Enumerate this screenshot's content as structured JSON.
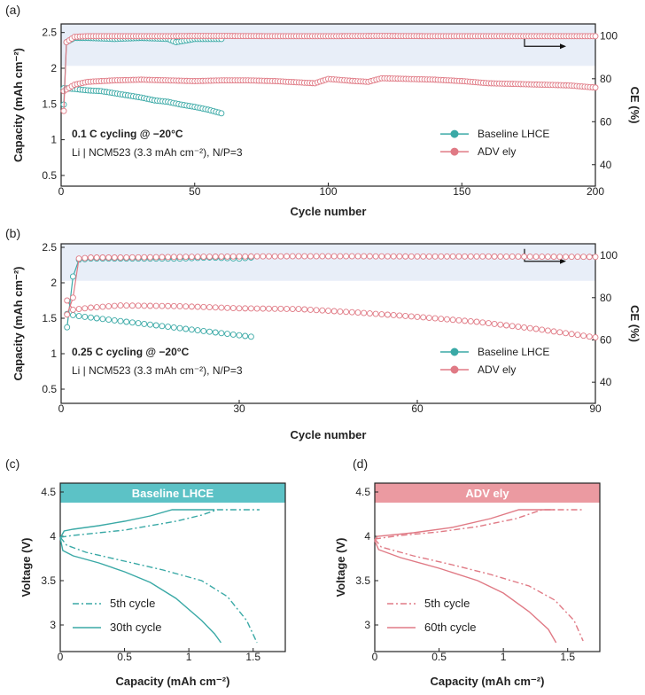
{
  "colors": {
    "baseline": "#3aa9a6",
    "adv": "#e07a85",
    "band": "#e8eef8",
    "baseline_header": "#5cc2c6",
    "adv_header": "#eb9aa1"
  },
  "chart_data": [
    {
      "panel": "(a)",
      "type": "scatter",
      "xlabel": "Cycle number",
      "ylabel": "Capacity (mAh cm⁻²)",
      "y2label": "CE (%)",
      "xlim": [
        0,
        200
      ],
      "ylim": [
        0.35,
        2.62
      ],
      "y2lim": [
        30,
        105.5
      ],
      "xticks": [
        0,
        50,
        100,
        150,
        200
      ],
      "yticks": [
        0.5,
        1,
        1.5,
        2,
        2.5
      ],
      "y2ticks": [
        40,
        60,
        80,
        100
      ],
      "shaded_ce_from": 86,
      "annotation_title": "0.1 C cycling @ −20°C",
      "annotation_sub": "Li | NCM523 (3.3 mAh cm⁻²), N/P=3",
      "legend_position": "right",
      "series": [
        {
          "name": "Baseline LHCE",
          "color": "baseline",
          "axis": "left",
          "x": [
            1,
            5,
            10,
            15,
            20,
            25,
            30,
            35,
            40,
            45,
            50,
            55,
            60
          ],
          "y": [
            1.72,
            1.71,
            1.69,
            1.68,
            1.65,
            1.62,
            1.59,
            1.55,
            1.53,
            1.49,
            1.46,
            1.42,
            1.37
          ]
        },
        {
          "name": "ADV ely",
          "color": "adv",
          "axis": "left",
          "x": [
            1,
            5,
            10,
            20,
            30,
            40,
            50,
            60,
            70,
            80,
            90,
            95,
            100,
            110,
            115,
            120,
            130,
            140,
            150,
            160,
            170,
            180,
            190,
            200
          ],
          "y": [
            1.68,
            1.77,
            1.81,
            1.83,
            1.84,
            1.83,
            1.82,
            1.83,
            1.83,
            1.82,
            1.8,
            1.79,
            1.85,
            1.82,
            1.81,
            1.86,
            1.85,
            1.84,
            1.82,
            1.79,
            1.78,
            1.77,
            1.76,
            1.73
          ]
        },
        {
          "name": "Baseline LHCE CE",
          "color": "baseline",
          "axis": "right",
          "x": [
            1,
            2,
            5,
            10,
            20,
            30,
            40,
            43,
            50,
            60
          ],
          "y": [
            68,
            97,
            99,
            99,
            98.5,
            99,
            98.5,
            97,
            98.5,
            98.5
          ]
        },
        {
          "name": "ADV ely CE",
          "color": "adv",
          "axis": "right",
          "x": [
            1,
            2,
            5,
            10,
            20,
            30,
            40,
            50,
            60,
            80,
            100,
            120,
            140,
            160,
            180,
            200
          ],
          "y": [
            65,
            97,
            99.5,
            99.8,
            99.8,
            99.8,
            99.8,
            99.9,
            99.9,
            99.8,
            99.8,
            99.9,
            99.8,
            99.8,
            99.8,
            99.8
          ]
        }
      ]
    },
    {
      "panel": "(b)",
      "type": "scatter",
      "xlabel": "Cycle number",
      "ylabel": "Capacity (mAh cm⁻²)",
      "y2label": "CE (%)",
      "xlim": [
        0,
        90
      ],
      "ylim": [
        0.3,
        2.55
      ],
      "y2lim": [
        30,
        105.5
      ],
      "xticks": [
        0,
        30,
        60,
        90
      ],
      "yticks": [
        0.5,
        1,
        1.5,
        2,
        2.5
      ],
      "y2ticks": [
        40,
        60,
        80,
        100
      ],
      "shaded_ce_from": 88,
      "annotation_title": "0.25 C cycling @ −20°C",
      "annotation_sub": "Li | NCM523 (3.3 mAh cm⁻²), N/P=3",
      "legend_position": "right",
      "series": [
        {
          "name": "Baseline LHCE",
          "color": "baseline",
          "axis": "left",
          "x": [
            1,
            3,
            6,
            10,
            14,
            18,
            22,
            26,
            30,
            32
          ],
          "y": [
            1.56,
            1.53,
            1.5,
            1.46,
            1.42,
            1.38,
            1.34,
            1.3,
            1.26,
            1.24
          ]
        },
        {
          "name": "ADV ely",
          "color": "adv",
          "axis": "left",
          "x": [
            1,
            2,
            5,
            10,
            20,
            30,
            40,
            50,
            60,
            70,
            80,
            90
          ],
          "y": [
            1.75,
            1.62,
            1.65,
            1.68,
            1.67,
            1.64,
            1.63,
            1.58,
            1.52,
            1.45,
            1.35,
            1.23
          ]
        },
        {
          "name": "Baseline LHCE CE",
          "color": "baseline",
          "axis": "right",
          "x": [
            1,
            2,
            3,
            5,
            10,
            15,
            20,
            25,
            30,
            32
          ],
          "y": [
            66,
            90,
            98,
            98.5,
            98.5,
            98.5,
            98.5,
            99,
            98.5,
            99
          ]
        },
        {
          "name": "ADV ely CE",
          "color": "adv",
          "axis": "right",
          "x": [
            1,
            2,
            3,
            5,
            10,
            20,
            30,
            40,
            50,
            60,
            70,
            80,
            90
          ],
          "y": [
            72,
            80,
            98.5,
            99,
            99,
            99.3,
            99.5,
            99.6,
            99.6,
            99.5,
            99.5,
            99.4,
            99.3
          ]
        }
      ]
    },
    {
      "panel": "(c)",
      "type": "line",
      "header": "Baseline LHCE",
      "xlabel": "Capacity (mAh cm⁻²)",
      "ylabel": "Voltage (V)",
      "xlim": [
        0,
        1.75
      ],
      "ylim": [
        2.7,
        4.6
      ],
      "header_from": 4.38,
      "xticks": [
        0,
        0.5,
        1,
        1.5
      ],
      "yticks": [
        3,
        3.5,
        4,
        4.5
      ],
      "color": "baseline",
      "legend_position": "bottom-left",
      "series": [
        {
          "name": "5th cycle",
          "style": "dashdot",
          "charge": {
            "x": [
              0,
              0.1,
              0.3,
              0.5,
              0.7,
              0.9,
              1.1,
              1.22,
              1.55
            ],
            "y": [
              3.99,
              4.01,
              4.04,
              4.07,
              4.12,
              4.17,
              4.24,
              4.3,
              4.3
            ]
          },
          "discharge": {
            "x": [
              0,
              0.05,
              0.2,
              0.5,
              0.8,
              1.1,
              1.3,
              1.45,
              1.53
            ],
            "y": [
              3.99,
              3.9,
              3.82,
              3.72,
              3.62,
              3.5,
              3.32,
              3.05,
              2.8
            ]
          }
        },
        {
          "name": "30th cycle",
          "style": "solid",
          "charge": {
            "x": [
              0,
              0.03,
              0.1,
              0.3,
              0.5,
              0.7,
              0.87,
              1.2
            ],
            "y": [
              3.98,
              4.06,
              4.08,
              4.12,
              4.17,
              4.23,
              4.3,
              4.3
            ]
          },
          "discharge": {
            "x": [
              0,
              0.02,
              0.1,
              0.3,
              0.5,
              0.7,
              0.9,
              1.1,
              1.2,
              1.25
            ],
            "y": [
              3.98,
              3.84,
              3.78,
              3.7,
              3.6,
              3.48,
              3.3,
              3.05,
              2.9,
              2.8
            ]
          }
        }
      ]
    },
    {
      "panel": "(d)",
      "type": "line",
      "header": "ADV ely",
      "xlabel": "Capacity (mAh cm⁻²)",
      "ylabel": "Voltage (V)",
      "xlim": [
        0,
        1.75
      ],
      "ylim": [
        2.7,
        4.6
      ],
      "header_from": 4.38,
      "xticks": [
        0,
        0.5,
        1,
        1.5
      ],
      "yticks": [
        3,
        3.5,
        4,
        4.5
      ],
      "color": "adv",
      "legend_position": "bottom-left",
      "series": [
        {
          "name": "5th cycle",
          "style": "dashdot",
          "charge": {
            "x": [
              0,
              0.2,
              0.5,
              0.8,
              1.1,
              1.3,
              1.62
            ],
            "y": [
              3.97,
              4.01,
              4.05,
              4.11,
              4.2,
              4.3,
              4.3
            ]
          },
          "discharge": {
            "x": [
              0,
              0.05,
              0.3,
              0.6,
              0.9,
              1.2,
              1.4,
              1.55,
              1.62
            ],
            "y": [
              3.97,
              3.88,
              3.78,
              3.68,
              3.57,
              3.44,
              3.28,
              3.05,
              2.82
            ]
          }
        },
        {
          "name": "60th cycle",
          "style": "solid",
          "charge": {
            "x": [
              0,
              0.02,
              0.3,
              0.6,
              0.9,
              1.12,
              1.4
            ],
            "y": [
              3.95,
              4.0,
              4.04,
              4.1,
              4.2,
              4.3,
              4.3
            ]
          },
          "discharge": {
            "x": [
              0,
              0.03,
              0.2,
              0.5,
              0.8,
              1.0,
              1.2,
              1.35,
              1.41
            ],
            "y": [
              3.95,
              3.85,
              3.76,
              3.64,
              3.5,
              3.36,
              3.15,
              2.95,
              2.8
            ]
          }
        }
      ]
    }
  ]
}
